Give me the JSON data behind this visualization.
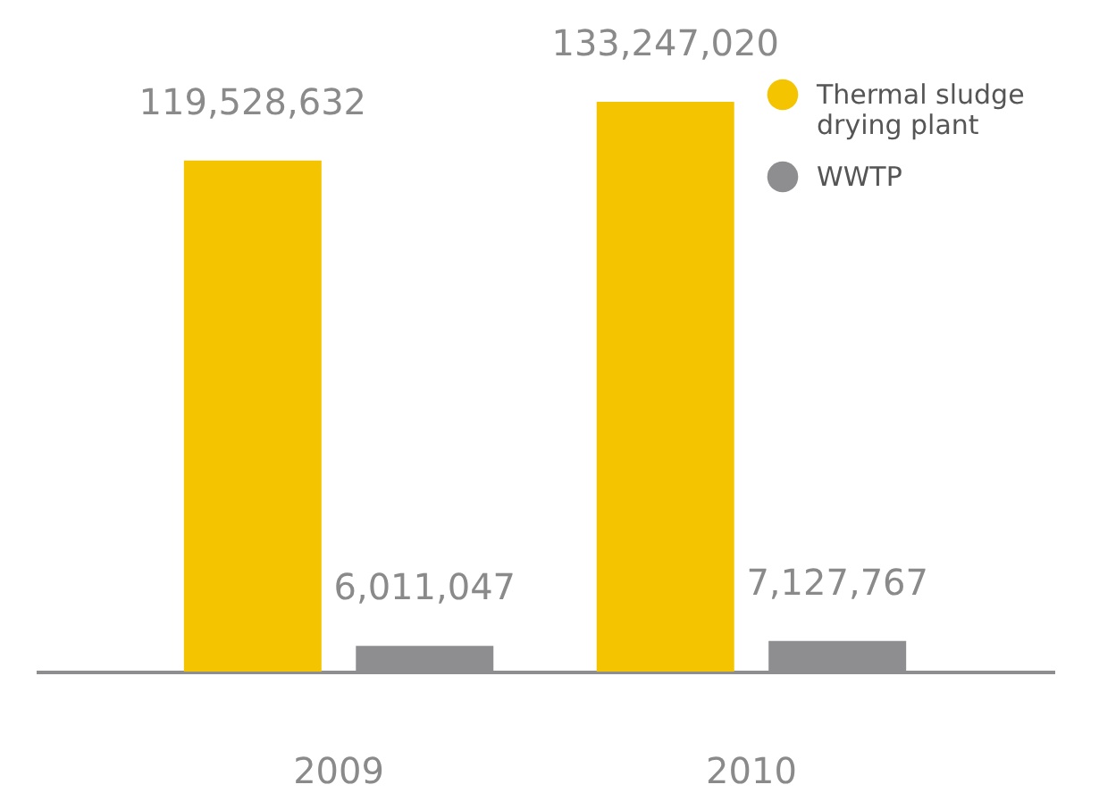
{
  "chart_data": {
    "type": "bar",
    "categories": [
      "2009",
      "2010"
    ],
    "series": [
      {
        "name": "Thermal sludge drying plant",
        "color": "#f5c400",
        "values": [
          119528632,
          133247020
        ],
        "value_labels": [
          "119,528,632",
          "133,247,020"
        ]
      },
      {
        "name": "WWTP",
        "color": "#8e8d8f",
        "values": [
          6011047,
          7127767
        ],
        "value_labels": [
          "6,011,047",
          "7,127,767"
        ]
      }
    ],
    "legend": "top right"
  }
}
